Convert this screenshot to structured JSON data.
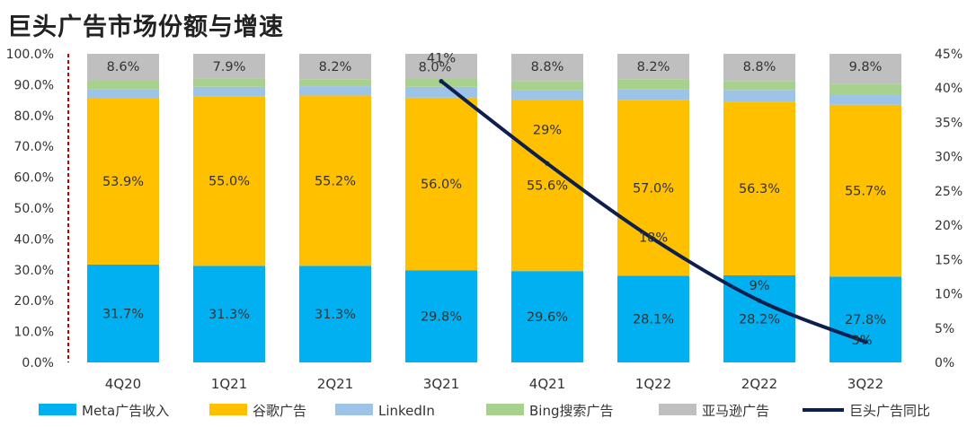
{
  "title": "巨头广告市场份额与增速",
  "chart_data": {
    "type": "bar",
    "stacked": true,
    "title": "巨头广告市场份额与增速",
    "categories": [
      "4Q20",
      "1Q21",
      "2Q21",
      "3Q21",
      "4Q21",
      "1Q22",
      "2Q22",
      "3Q22"
    ],
    "series": [
      {
        "name": "Meta广告收入",
        "color": "#00B0F0",
        "values": [
          31.7,
          31.3,
          31.3,
          29.8,
          29.6,
          28.1,
          28.2,
          27.8
        ],
        "labels": [
          "31.7%",
          "31.3%",
          "31.3%",
          "29.8%",
          "29.6%",
          "28.1%",
          "28.2%",
          "27.8%"
        ]
      },
      {
        "name": "谷歌广告",
        "color": "#FFC000",
        "values": [
          53.9,
          55.0,
          55.2,
          56.0,
          55.6,
          57.0,
          56.3,
          55.7
        ],
        "labels": [
          "53.9%",
          "55.0%",
          "55.2%",
          "56.0%",
          "55.6%",
          "57.0%",
          "56.3%",
          "55.7%"
        ]
      },
      {
        "name": "LinkedIn",
        "color": "#9DC3E6",
        "values": [
          3.0,
          3.0,
          3.0,
          3.5,
          3.0,
          3.5,
          3.8,
          3.4
        ]
      },
      {
        "name": "Bing搜索广告",
        "color": "#A9D18E",
        "values": [
          2.8,
          2.8,
          2.3,
          2.7,
          3.0,
          3.2,
          2.9,
          3.3
        ]
      },
      {
        "name": "亚马逊广告",
        "color": "#BFBFBF",
        "values": [
          8.6,
          7.9,
          8.2,
          8.0,
          8.8,
          8.2,
          8.8,
          9.8
        ],
        "labels": [
          "8.6%",
          "7.9%",
          "8.2%",
          "8.0%",
          "8.8%",
          "8.2%",
          "8.8%",
          "9.8%"
        ]
      }
    ],
    "line_series": {
      "name": "巨头广告同比",
      "color": "#0D1F4F",
      "axis": "right",
      "values": [
        41,
        29,
        18,
        9,
        3
      ],
      "category_index": [
        3,
        4,
        5,
        6,
        7
      ],
      "labels": [
        "41%",
        "29%",
        "18%",
        "9%",
        "3%"
      ]
    },
    "y_left": {
      "min": 0,
      "max": 100,
      "ticks": [
        "0.0%",
        "10.0%",
        "20.0%",
        "30.0%",
        "40.0%",
        "50.0%",
        "60.0%",
        "70.0%",
        "80.0%",
        "90.0%",
        "100.0%"
      ]
    },
    "y_right": {
      "min": 0,
      "max": 45,
      "ticks": [
        "0%",
        "5%",
        "10%",
        "15%",
        "20%",
        "25%",
        "30%",
        "35%",
        "40%",
        "45%"
      ]
    },
    "legend_position": "bottom",
    "grid": false
  }
}
